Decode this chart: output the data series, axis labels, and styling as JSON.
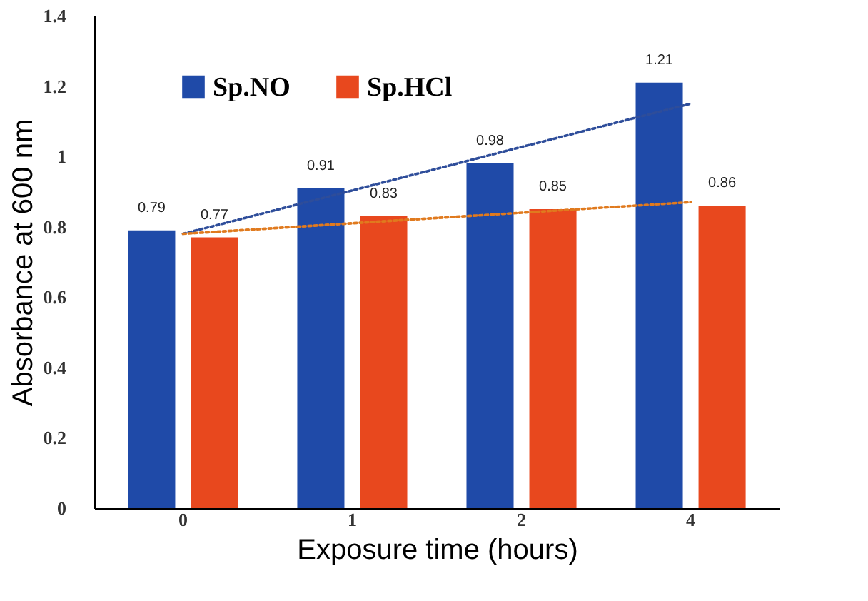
{
  "chart_data": {
    "type": "bar",
    "xlabel": "Exposure time (hours)",
    "ylabel": "Absorbance at 600 nm",
    "categories": [
      "0",
      "1",
      "2",
      "4"
    ],
    "series": [
      {
        "name": "Sp.NO",
        "color": "#1f4aa8",
        "values": [
          0.79,
          0.91,
          0.98,
          1.21
        ],
        "value_labels": [
          "0.79",
          "0.91",
          "0.98",
          "1.21"
        ]
      },
      {
        "name": "Sp.HCl",
        "color": "#e8481e",
        "values": [
          0.77,
          0.83,
          0.85,
          0.86
        ],
        "value_labels": [
          "0.77",
          "0.83",
          "0.85",
          "0.86"
        ]
      },
      {
        "type": "line",
        "color": "#2e4d9a",
        "x": [
          "0",
          "4"
        ],
        "values": [
          0.78,
          1.15
        ],
        "line_style": "dotted"
      },
      {
        "type": "line",
        "color": "#e07a1e",
        "x": [
          "0",
          "4"
        ],
        "values": [
          0.78,
          0.87
        ],
        "line_style": "dotted"
      }
    ],
    "ylim": [
      0,
      1.4
    ],
    "yticks": [
      0,
      0.2,
      0.4,
      0.6,
      0.8,
      1,
      1.2,
      1.4
    ],
    "grid": false,
    "legend": "top left"
  }
}
